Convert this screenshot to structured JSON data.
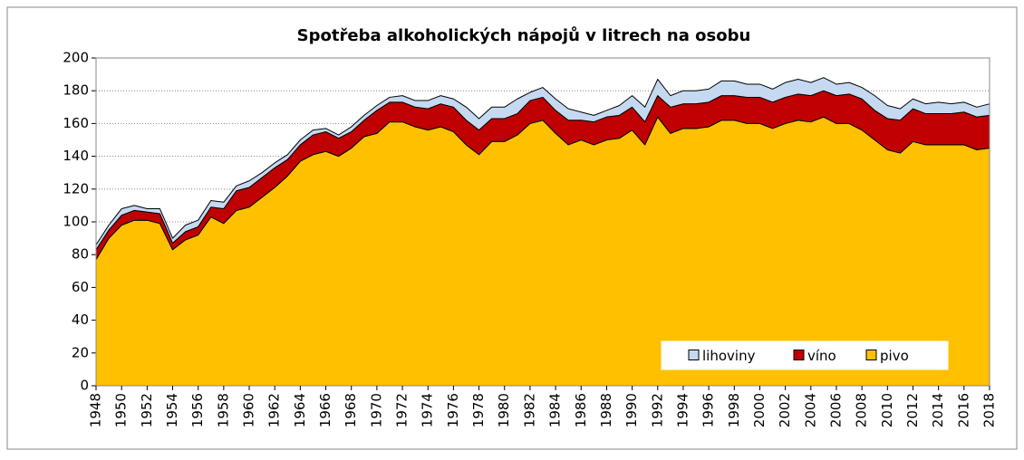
{
  "chart_data": {
    "type": "stacked_area",
    "title": "Spotřeba alkoholických  nápojů v litrech na osobu",
    "x": [
      1948,
      1949,
      1950,
      1951,
      1952,
      1953,
      1954,
      1955,
      1956,
      1957,
      1958,
      1959,
      1960,
      1961,
      1962,
      1963,
      1964,
      1965,
      1966,
      1967,
      1968,
      1969,
      1970,
      1971,
      1972,
      1973,
      1974,
      1975,
      1976,
      1977,
      1978,
      1979,
      1980,
      1981,
      1982,
      1983,
      1984,
      1985,
      1986,
      1987,
      1988,
      1989,
      1990,
      1991,
      1992,
      1993,
      1994,
      1995,
      1996,
      1997,
      1998,
      1999,
      2000,
      2001,
      2002,
      2003,
      2004,
      2005,
      2006,
      2007,
      2008,
      2009,
      2010,
      2011,
      2012,
      2013,
      2014,
      2015,
      2016,
      2017,
      2018
    ],
    "series": [
      {
        "name": "pivo",
        "color": "#ffc000",
        "values": [
          77,
          90,
          98,
          101,
          101,
          99,
          83,
          89,
          92,
          103,
          99,
          107,
          109,
          115,
          121,
          128,
          137,
          141,
          143,
          140,
          145,
          152,
          154,
          161,
          161,
          158,
          156,
          158,
          155,
          147,
          141,
          149,
          149,
          153,
          160,
          162,
          154,
          147,
          150,
          147,
          150,
          151,
          156,
          147,
          164,
          154,
          157,
          157,
          158,
          162,
          162,
          160,
          160,
          157,
          160,
          162,
          161,
          164,
          160,
          160,
          156,
          150,
          144,
          142,
          149,
          147,
          147,
          147,
          147,
          144,
          145
        ]
      },
      {
        "name": "víno",
        "color": "#c00000",
        "values": [
          6,
          5,
          6,
          6,
          5,
          6,
          4,
          5,
          5,
          6,
          9,
          12,
          12,
          12,
          12,
          10,
          10,
          12,
          12,
          11,
          10,
          10,
          14,
          12,
          12,
          12,
          13,
          14,
          15,
          15,
          15,
          14,
          14,
          13,
          14,
          14,
          14,
          15,
          12,
          14,
          14,
          14,
          14,
          14,
          13,
          16,
          15,
          15,
          15,
          15,
          15,
          16,
          16,
          16,
          16,
          16,
          16,
          16,
          17,
          18,
          19,
          18,
          19,
          20,
          20,
          19,
          19,
          19,
          20,
          20,
          20
        ]
      },
      {
        "name": "lihoviny",
        "color": "#c5d9f1",
        "values": [
          3,
          3,
          4,
          3,
          2,
          3,
          3,
          4,
          4,
          4,
          4,
          3,
          4,
          3,
          3,
          3,
          3,
          3,
          2,
          2,
          3,
          3,
          3,
          3,
          4,
          4,
          5,
          5,
          5,
          8,
          7,
          7,
          7,
          9,
          5,
          6,
          7,
          7,
          5,
          4,
          4,
          6,
          7,
          9,
          10,
          7,
          8,
          8,
          8,
          9,
          9,
          8,
          8,
          8,
          9,
          9,
          8,
          8,
          7,
          7,
          7,
          9,
          8,
          7,
          6,
          6,
          7,
          6,
          6,
          6,
          7
        ]
      }
    ],
    "xlim": [
      1948,
      2018
    ],
    "xticks": [
      1948,
      1950,
      1952,
      1954,
      1956,
      1958,
      1960,
      1962,
      1964,
      1966,
      1968,
      1970,
      1972,
      1974,
      1976,
      1978,
      1980,
      1982,
      1984,
      1986,
      1988,
      1990,
      1992,
      1994,
      1996,
      1998,
      2000,
      2002,
      2004,
      2006,
      2008,
      2010,
      2012,
      2014,
      2016,
      2018
    ],
    "ylim": [
      0,
      200
    ],
    "yticks": [
      0,
      20,
      40,
      60,
      80,
      100,
      120,
      140,
      160,
      180,
      200
    ],
    "grid": true,
    "legend": "lower right"
  }
}
